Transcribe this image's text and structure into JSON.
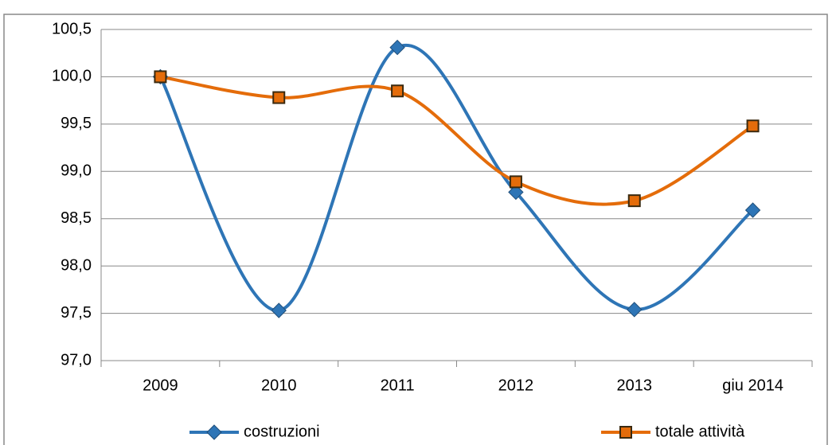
{
  "chart_data": {
    "type": "line",
    "categories": [
      "2009",
      "2010",
      "2011",
      "2012",
      "2013",
      "giu 2014"
    ],
    "series": [
      {
        "name": "costruzioni",
        "color": "#2e75b6",
        "marker": "diamond",
        "values": [
          100.0,
          97.53,
          100.31,
          98.78,
          97.54,
          98.59
        ]
      },
      {
        "name": "totale attività",
        "color": "#e46c0a",
        "marker": "square",
        "values": [
          100.0,
          99.78,
          99.85,
          98.89,
          98.69,
          99.48
        ]
      }
    ],
    "ylim": [
      97.0,
      100.5
    ],
    "yticks": [
      {
        "value": 97.0,
        "label": "97,0"
      },
      {
        "value": 97.5,
        "label": "97,5"
      },
      {
        "value": 98.0,
        "label": "98,0"
      },
      {
        "value": 98.5,
        "label": "98,5"
      },
      {
        "value": 99.0,
        "label": "99,0"
      },
      {
        "value": 99.5,
        "label": "99,5"
      },
      {
        "value": 100.0,
        "label": "100,0"
      },
      {
        "value": 100.5,
        "label": "100,5"
      }
    ],
    "grid": true,
    "smooth": true,
    "legend": "bottom"
  }
}
